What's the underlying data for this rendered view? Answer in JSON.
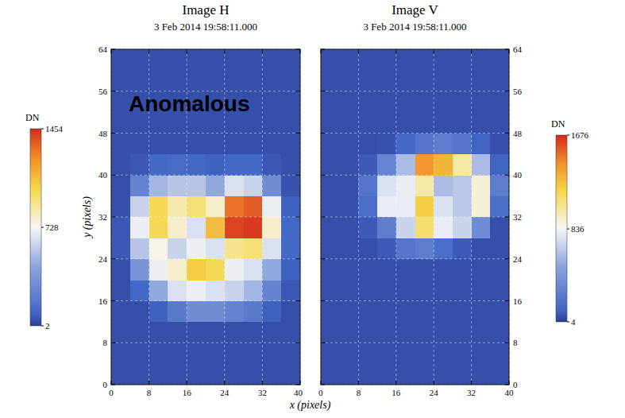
{
  "chart_data": [
    {
      "type": "heatmap",
      "title": "Image H",
      "subtitle": "3 Feb 2014 19:58:11.000",
      "annotation": "Anomalous",
      "x_label": "x (pixels)",
      "y_label": "y (pixels)",
      "xlim": [
        0,
        40
      ],
      "ylim": [
        0,
        64
      ],
      "xticks": [
        0,
        8,
        16,
        24,
        32,
        40
      ],
      "yticks": [
        0,
        8,
        16,
        24,
        32,
        40,
        48,
        56,
        64
      ],
      "grid": true,
      "x": [
        0,
        4,
        8,
        12,
        16,
        20,
        24,
        28,
        32,
        36,
        40
      ],
      "y": [
        0,
        4,
        8,
        12,
        16,
        20,
        24,
        28,
        32,
        36,
        40,
        44,
        48,
        52,
        56,
        60,
        64
      ],
      "z": [
        [
          40,
          40,
          40,
          40,
          40,
          40,
          40,
          40,
          40,
          40
        ],
        [
          40,
          40,
          40,
          40,
          40,
          40,
          40,
          40,
          40,
          40
        ],
        [
          40,
          40,
          40,
          40,
          40,
          40,
          40,
          40,
          40,
          40
        ],
        [
          40,
          40,
          80,
          200,
          300,
          300,
          250,
          200,
          80,
          40
        ],
        [
          40,
          100,
          450,
          650,
          700,
          650,
          600,
          500,
          250,
          60
        ],
        [
          40,
          350,
          700,
          800,
          1050,
          1000,
          700,
          650,
          450,
          80
        ],
        [
          60,
          550,
          750,
          600,
          700,
          650,
          900,
          950,
          650,
          100
        ],
        [
          60,
          700,
          1000,
          800,
          650,
          1100,
          1400,
          1420,
          800,
          100
        ],
        [
          40,
          600,
          1000,
          850,
          950,
          800,
          1300,
          1350,
          700,
          80
        ],
        [
          40,
          250,
          500,
          550,
          550,
          450,
          650,
          600,
          300,
          50
        ],
        [
          40,
          60,
          100,
          120,
          100,
          80,
          100,
          100,
          60,
          40
        ],
        [
          40,
          40,
          40,
          40,
          40,
          40,
          40,
          40,
          40,
          40
        ],
        [
          40,
          40,
          40,
          40,
          40,
          40,
          40,
          40,
          40,
          40
        ],
        [
          40,
          40,
          40,
          40,
          40,
          40,
          40,
          40,
          40,
          40
        ],
        [
          40,
          40,
          40,
          40,
          40,
          40,
          40,
          40,
          40,
          40
        ],
        [
          40,
          40,
          40,
          40,
          40,
          40,
          40,
          40,
          40,
          40
        ]
      ],
      "colorbar": {
        "label": "DN",
        "range": [
          2,
          1454
        ],
        "ticks": [
          2,
          728,
          1454
        ]
      }
    },
    {
      "type": "heatmap",
      "title": "Image V",
      "subtitle": "3 Feb 2014 19:58:11.000",
      "xlim": [
        0,
        40
      ],
      "ylim": [
        0,
        64
      ],
      "xticks": [
        0,
        8,
        16,
        24,
        32,
        40
      ],
      "yticks": [
        0,
        8,
        16,
        24,
        32,
        40,
        48,
        56,
        64
      ],
      "grid": true,
      "x": [
        0,
        4,
        8,
        12,
        16,
        20,
        24,
        28,
        32,
        36,
        40
      ],
      "y": [
        0,
        4,
        8,
        12,
        16,
        20,
        24,
        28,
        32,
        36,
        40,
        44,
        48,
        52,
        56,
        60,
        64
      ],
      "z": [
        [
          50,
          50,
          50,
          50,
          50,
          50,
          50,
          50,
          50,
          50
        ],
        [
          50,
          50,
          50,
          50,
          50,
          50,
          50,
          50,
          50,
          50
        ],
        [
          50,
          50,
          50,
          50,
          50,
          50,
          50,
          50,
          50,
          50
        ],
        [
          50,
          50,
          50,
          50,
          50,
          50,
          50,
          50,
          50,
          50
        ],
        [
          50,
          50,
          50,
          50,
          50,
          50,
          50,
          50,
          50,
          50
        ],
        [
          50,
          50,
          50,
          50,
          50,
          50,
          50,
          50,
          50,
          50
        ],
        [
          50,
          50,
          50,
          80,
          200,
          250,
          150,
          80,
          50,
          50
        ],
        [
          50,
          50,
          80,
          250,
          700,
          1100,
          800,
          700,
          350,
          50
        ],
        [
          50,
          50,
          150,
          800,
          800,
          1200,
          750,
          650,
          900,
          150
        ],
        [
          50,
          50,
          200,
          750,
          800,
          1000,
          600,
          650,
          900,
          250
        ],
        [
          50,
          50,
          80,
          300,
          600,
          1400,
          1300,
          1000,
          600,
          100
        ],
        [
          50,
          50,
          50,
          60,
          120,
          200,
          250,
          200,
          100,
          50
        ],
        [
          50,
          50,
          50,
          50,
          50,
          50,
          50,
          50,
          50,
          50
        ],
        [
          50,
          50,
          50,
          50,
          50,
          50,
          50,
          50,
          50,
          50
        ],
        [
          50,
          50,
          50,
          50,
          50,
          50,
          50,
          50,
          50,
          50
        ],
        [
          50,
          50,
          50,
          50,
          50,
          50,
          50,
          50,
          50,
          50
        ]
      ],
      "colorbar": {
        "label": "DN",
        "range": [
          4,
          1676
        ],
        "ticks": [
          4,
          836,
          1676
        ]
      }
    }
  ]
}
